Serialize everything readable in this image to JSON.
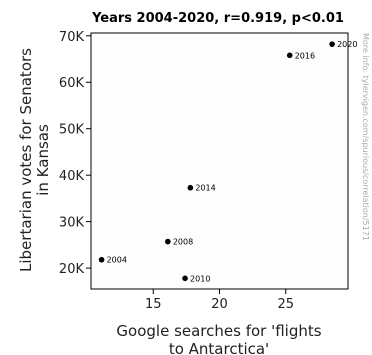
{
  "chart_data": {
    "type": "scatter",
    "title": "Years 2004-2020, r=0.919, p<0.01",
    "xlabel": [
      "Google searches for 'flights",
      "to Antarctica'"
    ],
    "ylabel": [
      "Libertarian votes for Senators",
      "in Kansas"
    ],
    "watermark": "More info: tylervigen.com/spurious/correlation/5171",
    "xlim": [
      10.3,
      29.7
    ],
    "ylim": [
      15500,
      70600
    ],
    "x_ticks": [
      15,
      20,
      25
    ],
    "x_tick_labels": [
      "15",
      "20",
      "25"
    ],
    "y_ticks": [
      20000,
      30000,
      40000,
      50000,
      60000,
      70000
    ],
    "y_tick_labels": [
      "20K",
      "30K",
      "40K",
      "50K",
      "60K",
      "70K"
    ],
    "grid": false,
    "points": [
      {
        "label": "2004",
        "x": 11.1,
        "y": 21800
      },
      {
        "label": "2008",
        "x": 16.1,
        "y": 25700
      },
      {
        "label": "2010",
        "x": 17.4,
        "y": 17800
      },
      {
        "label": "2014",
        "x": 17.8,
        "y": 37300
      },
      {
        "label": "2016",
        "x": 25.3,
        "y": 65800
      },
      {
        "label": "2020",
        "x": 28.5,
        "y": 68200
      }
    ],
    "colors": {
      "points": "#000000",
      "background": "#fdfdfd",
      "frame": "#000000"
    }
  }
}
